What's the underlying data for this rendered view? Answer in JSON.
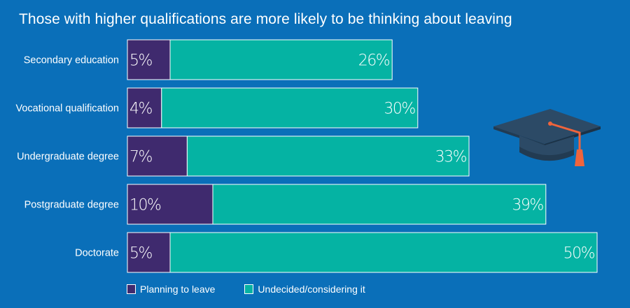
{
  "title": "Those with higher qualifications are more likely to be thinking about leaving",
  "legend": {
    "planning": "Planning to leave",
    "undecided": "Undecided/considering it"
  },
  "colors": {
    "background": "#0a6fb9",
    "planning": "#3f2a6e",
    "undecided": "#05b3a3",
    "cap": "#2c4a66",
    "tassel": "#f0643c"
  },
  "icon": "graduation-cap-icon",
  "chart_data": {
    "type": "bar",
    "orientation": "horizontal",
    "stacked": true,
    "categories": [
      "Secondary education",
      "Vocational qualification",
      "Undergraduate degree",
      "Postgraduate degree",
      "Doctorate"
    ],
    "series": [
      {
        "name": "Planning to leave",
        "values": [
          5,
          4,
          7,
          10,
          5
        ],
        "labels": [
          "5%",
          "4%",
          "7%",
          "10%",
          "5%"
        ]
      },
      {
        "name": "Undecided/considering it",
        "values": [
          26,
          30,
          33,
          39,
          50
        ],
        "labels": [
          "26%",
          "30%",
          "33%",
          "39%",
          "50%"
        ]
      }
    ],
    "unit": "%",
    "legend_position": "bottom-left",
    "grid": false
  }
}
